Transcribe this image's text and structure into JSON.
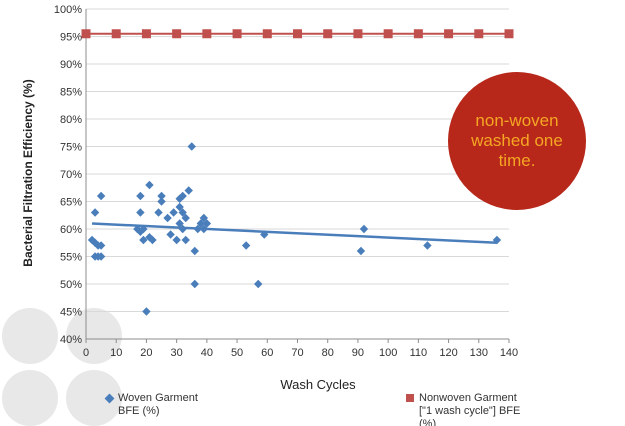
{
  "chart_data": {
    "type": "scatter",
    "title": "",
    "xlabel": "Wash Cycles",
    "ylabel": "Bacterial Filtration Efficiency (%)",
    "xlim": [
      0,
      140
    ],
    "ylim": [
      40,
      100
    ],
    "x_ticks": [
      0,
      10,
      20,
      30,
      40,
      50,
      60,
      70,
      80,
      90,
      100,
      110,
      120,
      130,
      140
    ],
    "y_ticks": [
      "40%",
      "45%",
      "50%",
      "55%",
      "60%",
      "65%",
      "70%",
      "75%",
      "80%",
      "85%",
      "90%",
      "95%",
      "100%"
    ],
    "grid": "horizontal",
    "legend_position": "bottom",
    "series": [
      {
        "name": "Woven Garment BFE (%)",
        "marker": "diamond",
        "color": "#4a7ebb",
        "points": [
          [
            2,
            58
          ],
          [
            3,
            63
          ],
          [
            3,
            57.5
          ],
          [
            3,
            55
          ],
          [
            4,
            57
          ],
          [
            4,
            55
          ],
          [
            5,
            66
          ],
          [
            5,
            55
          ],
          [
            5,
            57
          ],
          [
            17,
            60
          ],
          [
            18,
            66
          ],
          [
            18,
            63
          ],
          [
            18,
            59.5
          ],
          [
            19,
            58
          ],
          [
            19,
            60
          ],
          [
            20,
            45
          ],
          [
            21,
            58.5
          ],
          [
            21,
            68
          ],
          [
            22,
            58
          ],
          [
            24,
            63
          ],
          [
            25,
            65
          ],
          [
            25,
            66
          ],
          [
            27,
            62
          ],
          [
            28,
            59
          ],
          [
            29,
            63
          ],
          [
            30,
            58
          ],
          [
            31,
            64
          ],
          [
            31,
            61
          ],
          [
            31,
            65.5
          ],
          [
            32,
            60
          ],
          [
            32,
            63
          ],
          [
            32,
            66
          ],
          [
            33,
            62
          ],
          [
            33,
            58
          ],
          [
            34,
            67
          ],
          [
            35,
            75
          ],
          [
            36,
            56
          ],
          [
            36,
            50
          ],
          [
            37,
            60
          ],
          [
            38,
            61
          ],
          [
            39,
            62
          ],
          [
            39,
            60
          ],
          [
            40,
            61
          ],
          [
            53,
            57
          ],
          [
            57,
            50
          ],
          [
            59,
            59
          ],
          [
            91,
            56
          ],
          [
            92,
            60
          ],
          [
            113,
            57
          ],
          [
            136,
            58
          ]
        ]
      },
      {
        "name": "Nonwoven Garment [\"1 wash cycle\"] BFE (%)",
        "marker": "square",
        "color": "#c0504d",
        "points": [
          [
            0,
            95.5
          ],
          [
            10,
            95.5
          ],
          [
            20,
            95.5
          ],
          [
            30,
            95.5
          ],
          [
            40,
            95.5
          ],
          [
            50,
            95.5
          ],
          [
            60,
            95.5
          ],
          [
            70,
            95.5
          ],
          [
            80,
            95.5
          ],
          [
            90,
            95.5
          ],
          [
            100,
            95.5
          ],
          [
            110,
            95.5
          ],
          [
            120,
            95.5
          ],
          [
            130,
            95.5
          ],
          [
            140,
            95.5
          ]
        ]
      }
    ],
    "trendline": {
      "series": "Woven Garment BFE (%)",
      "x": [
        2,
        136
      ],
      "y": [
        61,
        57.5
      ],
      "color": "#4a7ebb"
    },
    "reference_line": {
      "y": 95.5,
      "color": "#c0504d"
    }
  },
  "legend": {
    "woven_line1": "Woven Garment",
    "woven_line2": "BFE (%)",
    "nonwoven_line1": "Nonwoven Garment",
    "nonwoven_line2": "[\"1 wash cycle\"] BFE",
    "nonwoven_line3": "(%)"
  },
  "callout": {
    "text": "non-woven washed one time."
  }
}
